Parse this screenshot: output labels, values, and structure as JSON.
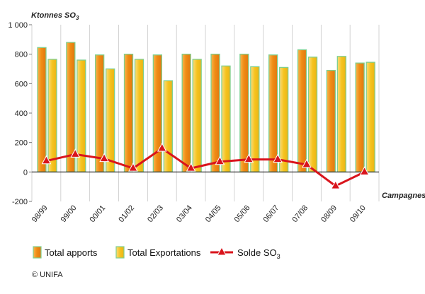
{
  "chart_data": {
    "type": "bar",
    "unit_label": "Ktonnes SO",
    "unit_sub": "3",
    "xaxis_title": "Campagnes",
    "categories": [
      "98/99",
      "99/00",
      "00/01",
      "01/02",
      "02/03",
      "03/04",
      "04/05",
      "05/06",
      "06/07",
      "07/08",
      "08/09",
      "09/10"
    ],
    "yticks": [
      -200,
      0,
      200,
      400,
      600,
      800,
      1000
    ],
    "ytick_labels": [
      "-200",
      "0",
      "200",
      "400",
      "600",
      "800",
      "1 000"
    ],
    "ylim": [
      -200,
      1000
    ],
    "grid": "vertical",
    "legend_position": "bottom",
    "series": [
      {
        "name": "Total apports",
        "kind": "bar",
        "color": "#f29a1f",
        "values": [
          845,
          880,
          795,
          800,
          795,
          800,
          800,
          800,
          795,
          830,
          690,
          740
        ]
      },
      {
        "name": "Total Exportations",
        "kind": "bar",
        "color": "#f7c948",
        "values": [
          765,
          760,
          700,
          765,
          620,
          765,
          720,
          715,
          710,
          780,
          785,
          745
        ]
      },
      {
        "name": "Solde SO",
        "name_sub": "3",
        "kind": "line",
        "color": "#d9141c",
        "values": [
          75,
          120,
          90,
          25,
          160,
          25,
          70,
          85,
          85,
          50,
          -95,
          0
        ]
      }
    ]
  },
  "credit": "© UNIFA"
}
